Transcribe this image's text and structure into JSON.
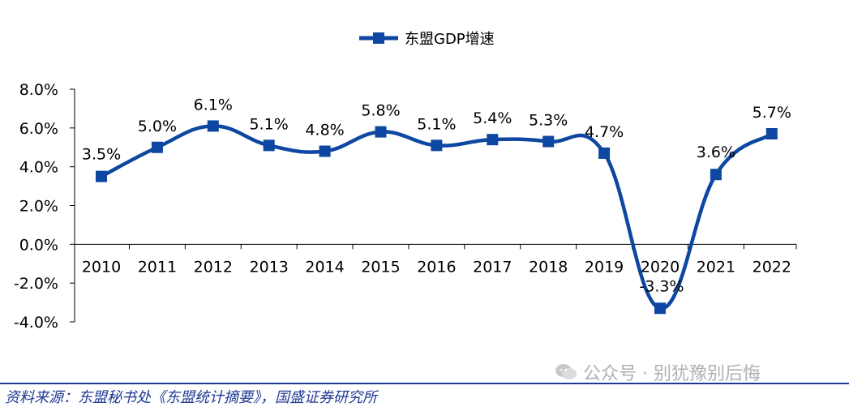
{
  "chart_data": {
    "type": "line",
    "categories": [
      "2010",
      "2011",
      "2012",
      "2013",
      "2014",
      "2015",
      "2016",
      "2017",
      "2018",
      "2019",
      "2020",
      "2021",
      "2022"
    ],
    "series": [
      {
        "name": "东盟GDP增速",
        "values": [
          3.5,
          5.0,
          6.1,
          5.1,
          4.8,
          5.8,
          5.1,
          5.4,
          5.3,
          4.7,
          -3.3,
          3.6,
          5.7
        ],
        "data_labels": [
          "3.5%",
          "5.0%",
          "6.1%",
          "5.1%",
          "4.8%",
          "5.8%",
          "5.1%",
          "5.4%",
          "5.3%",
          "4.7%",
          "-3.3%",
          "3.6%",
          "5.7%"
        ]
      }
    ],
    "y_ticks": [
      "8.0%",
      "6.0%",
      "4.0%",
      "2.0%",
      "0.0%",
      "-2.0%",
      "-4.0%"
    ],
    "y_tick_values": [
      8,
      6,
      4,
      2,
      0,
      -2,
      -4
    ],
    "ylim": [
      -4,
      8
    ],
    "grid": false,
    "legend_position": "top-center",
    "line_color": "#0d47a1",
    "marker": "square",
    "smooth": true
  },
  "footer": {
    "source": "资料来源：东盟秘书处《东盟统计摘要》，国盛证券研究所",
    "bar_color": "#1f3a93"
  },
  "watermark": {
    "text": "公众号 · 别犹豫别后悔",
    "icon": "wechat-icon"
  }
}
